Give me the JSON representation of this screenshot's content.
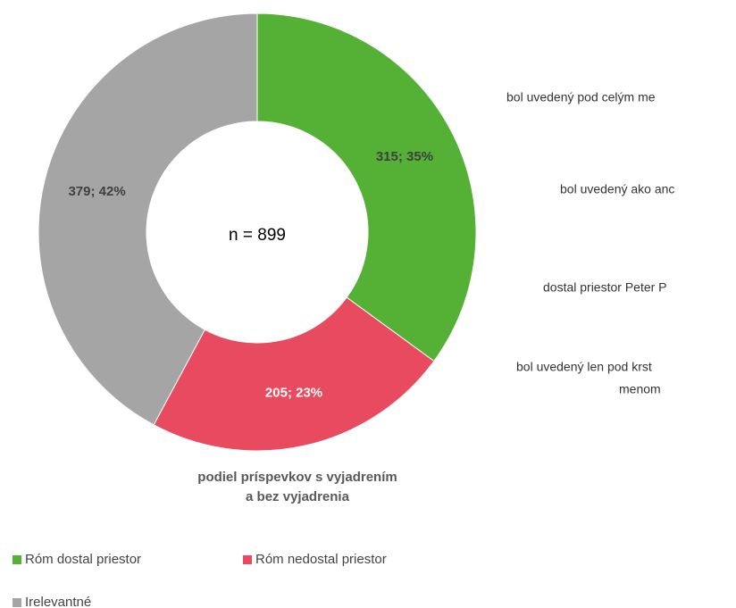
{
  "chart_data": {
    "type": "donut",
    "title": "podiel príspevkov s vyjadrením a bez vyjadrenia",
    "center_label": "n = 899",
    "categories": [
      "Róm dostal priestor",
      "Róm nedostal priestor",
      "Irelevantné"
    ],
    "values": [
      315,
      205,
      379
    ],
    "value_labels": [
      "315; 35%",
      "205; 23%",
      "379; 42%"
    ],
    "colors": [
      "#54b135",
      "#e84a5f",
      "#a5a5a5"
    ],
    "legend": "bottom",
    "side_labels": [
      "bol uvedený pod celým me",
      "bol uvedený ako anc",
      "dostal priestor Peter P",
      "bol uvedený len pod krst",
      "menom"
    ]
  }
}
